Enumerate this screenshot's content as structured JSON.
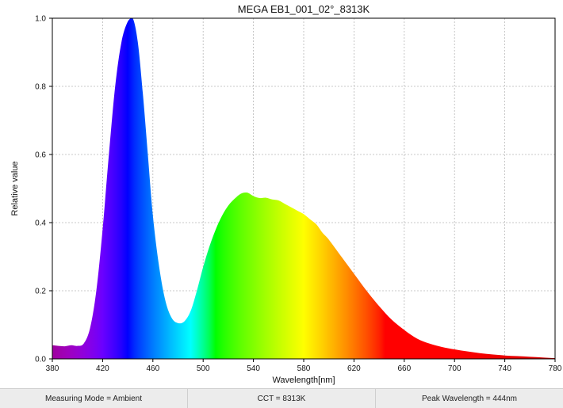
{
  "chart_data": {
    "type": "area",
    "title": "MEGA EB1_001_02°_8313K",
    "xlabel": "Wavelength[nm]",
    "ylabel": "Relative value",
    "xlim": [
      380,
      780
    ],
    "ylim": [
      0,
      1.0
    ],
    "x_ticks": [
      380,
      420,
      460,
      500,
      540,
      580,
      620,
      660,
      700,
      740,
      780
    ],
    "x_tick_labels": [
      "380",
      "420",
      "460",
      "500",
      "540",
      "580",
      "620",
      "660",
      "700",
      "740",
      "780"
    ],
    "y_ticks": [
      0.0,
      0.2,
      0.4,
      0.6,
      0.8,
      1.0
    ],
    "y_tick_labels": [
      "0.0",
      "0.2",
      "0.4",
      "0.6",
      "0.8",
      "1.0"
    ],
    "grid": true,
    "fill": "spectral",
    "x": [
      380,
      385,
      390,
      395,
      400,
      405,
      410,
      415,
      420,
      425,
      430,
      435,
      440,
      444,
      448,
      452,
      456,
      460,
      465,
      470,
      475,
      480,
      485,
      490,
      495,
      500,
      505,
      510,
      515,
      520,
      525,
      530,
      535,
      540,
      545,
      550,
      555,
      560,
      565,
      570,
      575,
      580,
      585,
      590,
      595,
      600,
      610,
      620,
      630,
      640,
      650,
      660,
      670,
      680,
      690,
      700,
      710,
      720,
      730,
      740,
      750,
      760,
      770,
      780
    ],
    "y": [
      0.04,
      0.038,
      0.037,
      0.04,
      0.038,
      0.045,
      0.09,
      0.2,
      0.38,
      0.6,
      0.8,
      0.93,
      0.99,
      1.0,
      0.93,
      0.78,
      0.6,
      0.42,
      0.27,
      0.17,
      0.12,
      0.105,
      0.11,
      0.14,
      0.2,
      0.27,
      0.33,
      0.38,
      0.42,
      0.45,
      0.47,
      0.485,
      0.488,
      0.478,
      0.472,
      0.473,
      0.468,
      0.465,
      0.455,
      0.445,
      0.435,
      0.425,
      0.41,
      0.395,
      0.37,
      0.35,
      0.3,
      0.25,
      0.2,
      0.155,
      0.115,
      0.085,
      0.06,
      0.045,
      0.035,
      0.028,
      0.022,
      0.017,
      0.013,
      0.01,
      0.008,
      0.006,
      0.004,
      0.002
    ]
  },
  "status": {
    "measuring_mode": "Measuring Mode = Ambient",
    "cct": "CCT = 8313K",
    "peak": "Peak Wavelength = 444nm"
  }
}
